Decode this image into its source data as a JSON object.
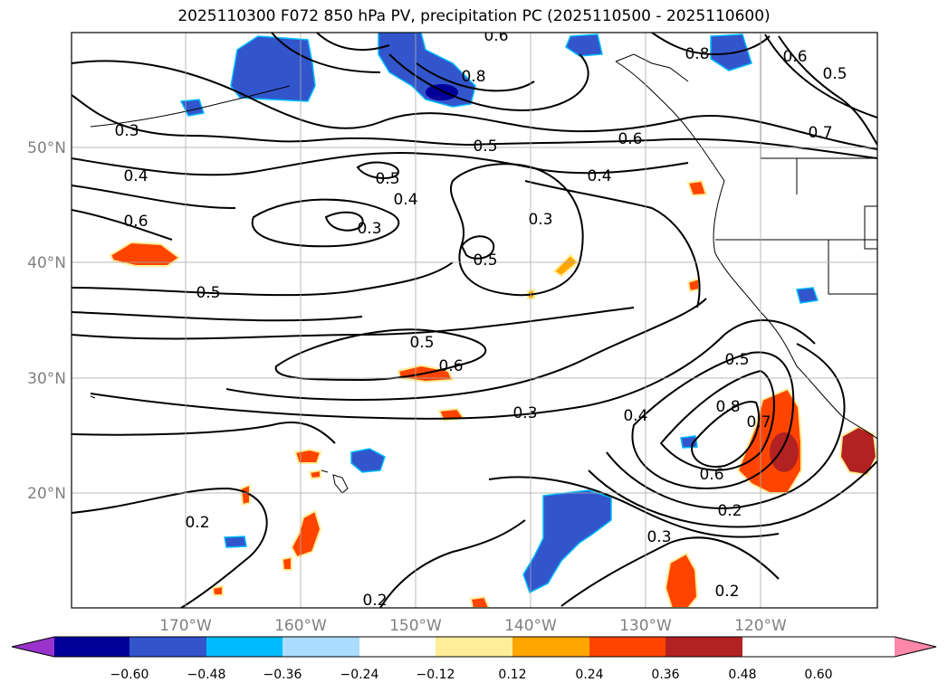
{
  "title": "2025110300 F072 850 hPa PV, precipitation PC (2025110500 - 2025110600)",
  "latitudes": [
    "50°N",
    "40°N",
    "30°N",
    "20°N"
  ],
  "longitudes": [
    "170°W",
    "160°W",
    "150°W",
    "140°W",
    "130°W",
    "120°W"
  ],
  "contour_labels": [
    "0.3",
    "0.4",
    "0.6",
    "0.5",
    "0.5",
    "0.4",
    "0.3",
    "0.5",
    "0.6",
    "0.4",
    "0.3",
    "0.5",
    "0.5",
    "0.6",
    "0.6",
    "0.8",
    "0.8",
    "0.6",
    "0.5",
    "0.7",
    "0.5",
    "0.8",
    "0.4",
    "0.6",
    "0.3",
    "0.2",
    "0.3",
    "0.2",
    "0.2",
    "0.2",
    "0.7"
  ],
  "colorbar": {
    "ticks": [
      "−0.60",
      "−0.48",
      "−0.36",
      "−0.24",
      "−0.12",
      "0.12",
      "0.24",
      "0.36",
      "0.48",
      "0.60"
    ],
    "colors": [
      "#9933cc",
      "#000099",
      "#3355cc",
      "#00bbff",
      "#aaddff",
      "#ffffff",
      "#ffee99",
      "#ffa500",
      "#ff4400",
      "#b22222",
      "#ff88aa"
    ]
  },
  "colors": {
    "coast": "#000000",
    "grid": "#aaaaaa",
    "label": "#808080"
  }
}
